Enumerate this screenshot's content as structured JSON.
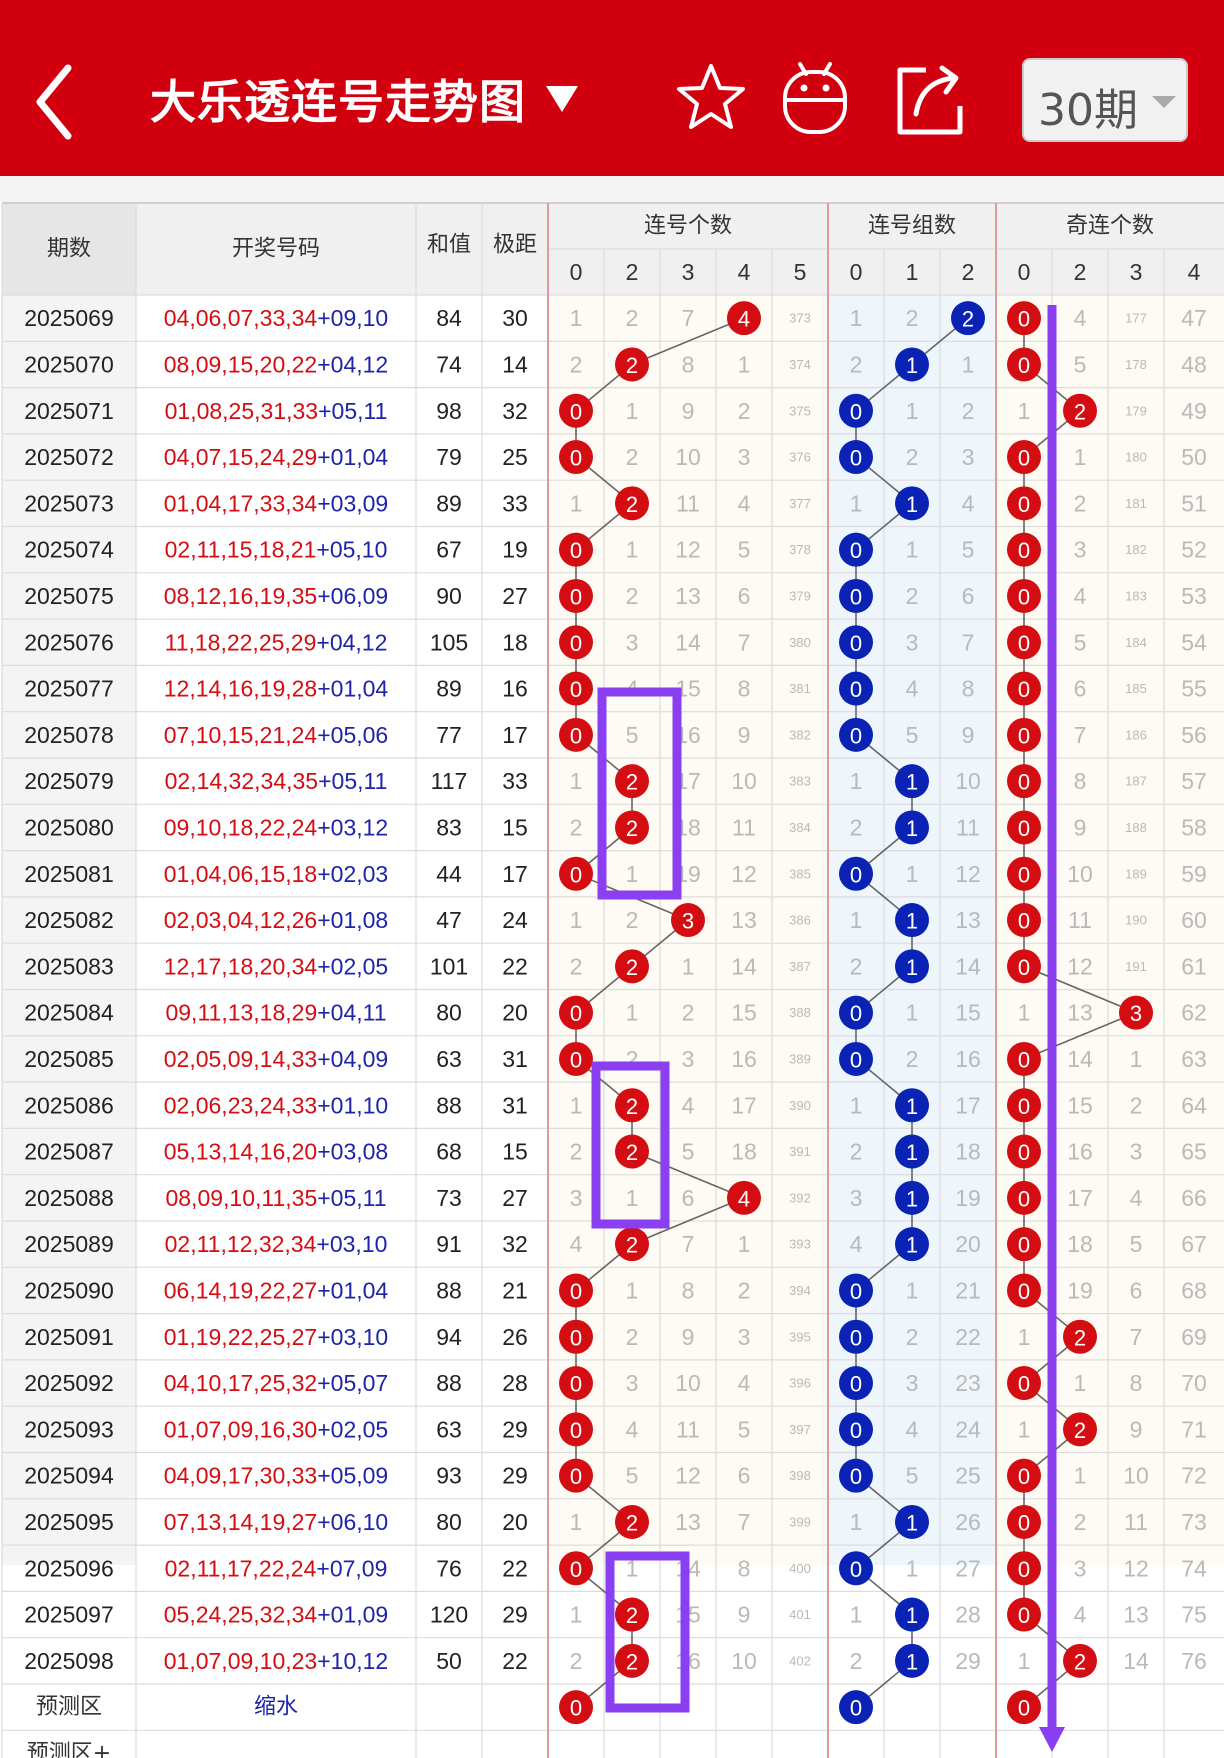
{
  "header": {
    "title": "大乐透连号走势图",
    "period_label": "30期",
    "icons": [
      "back-icon",
      "dropdown-icon",
      "star-icon",
      "android-icon",
      "share-icon",
      "caret-down-icon"
    ]
  },
  "table": {
    "col_headers": {
      "period": "期数",
      "numbers": "开奖号码",
      "sum": "和值",
      "span": "极距"
    },
    "groups": [
      {
        "label": "连号个数",
        "subs": [
          "0",
          "2",
          "3",
          "4",
          "5"
        ]
      },
      {
        "label": "连号组数",
        "subs": [
          "0",
          "1",
          "2"
        ]
      },
      {
        "label": "奇连个数",
        "subs": [
          "0",
          "2",
          "3",
          "4"
        ]
      }
    ],
    "rows": [
      {
        "p": "2025069",
        "f": "04,06,07,33,34",
        "b": "09,10",
        "s": "84",
        "j": "30",
        "g1": [
          "1",
          "2",
          "7",
          "4",
          "373"
        ],
        "h1": 3,
        "g2": [
          "1",
          "2",
          "2"
        ],
        "h2": 2,
        "g3": [
          "0",
          "4",
          "177",
          "47"
        ],
        "h3": 0
      },
      {
        "p": "2025070",
        "f": "08,09,15,20,22",
        "b": "04,12",
        "s": "74",
        "j": "14",
        "g1": [
          "2",
          "2",
          "8",
          "1",
          "374"
        ],
        "h1": 1,
        "g2": [
          "2",
          "1",
          "1"
        ],
        "h2": 1,
        "g3": [
          "0",
          "5",
          "178",
          "48"
        ],
        "h3": 0
      },
      {
        "p": "2025071",
        "f": "01,08,25,31,33",
        "b": "05,11",
        "s": "98",
        "j": "32",
        "g1": [
          "0",
          "1",
          "9",
          "2",
          "375"
        ],
        "h1": 0,
        "g2": [
          "0",
          "1",
          "2"
        ],
        "h2": 0,
        "g3": [
          "1",
          "2",
          "179",
          "49"
        ],
        "h3": 1
      },
      {
        "p": "2025072",
        "f": "04,07,15,24,29",
        "b": "01,04",
        "s": "79",
        "j": "25",
        "g1": [
          "0",
          "2",
          "10",
          "3",
          "376"
        ],
        "h1": 0,
        "g2": [
          "0",
          "2",
          "3"
        ],
        "h2": 0,
        "g3": [
          "0",
          "1",
          "180",
          "50"
        ],
        "h3": 0
      },
      {
        "p": "2025073",
        "f": "01,04,17,33,34",
        "b": "03,09",
        "s": "89",
        "j": "33",
        "g1": [
          "1",
          "2",
          "11",
          "4",
          "377"
        ],
        "h1": 1,
        "g2": [
          "1",
          "1",
          "4"
        ],
        "h2": 1,
        "g3": [
          "0",
          "2",
          "181",
          "51"
        ],
        "h3": 0
      },
      {
        "p": "2025074",
        "f": "02,11,15,18,21",
        "b": "05,10",
        "s": "67",
        "j": "19",
        "g1": [
          "0",
          "1",
          "12",
          "5",
          "378"
        ],
        "h1": 0,
        "g2": [
          "0",
          "1",
          "5"
        ],
        "h2": 0,
        "g3": [
          "0",
          "3",
          "182",
          "52"
        ],
        "h3": 0
      },
      {
        "p": "2025075",
        "f": "08,12,16,19,35",
        "b": "06,09",
        "s": "90",
        "j": "27",
        "g1": [
          "0",
          "2",
          "13",
          "6",
          "379"
        ],
        "h1": 0,
        "g2": [
          "0",
          "2",
          "6"
        ],
        "h2": 0,
        "g3": [
          "0",
          "4",
          "183",
          "53"
        ],
        "h3": 0
      },
      {
        "p": "2025076",
        "f": "11,18,22,25,29",
        "b": "04,12",
        "s": "105",
        "j": "18",
        "g1": [
          "0",
          "3",
          "14",
          "7",
          "380"
        ],
        "h1": 0,
        "g2": [
          "0",
          "3",
          "7"
        ],
        "h2": 0,
        "g3": [
          "0",
          "5",
          "184",
          "54"
        ],
        "h3": 0
      },
      {
        "p": "2025077",
        "f": "12,14,16,19,28",
        "b": "01,04",
        "s": "89",
        "j": "16",
        "g1": [
          "0",
          "4",
          "15",
          "8",
          "381"
        ],
        "h1": 0,
        "g2": [
          "0",
          "4",
          "8"
        ],
        "h2": 0,
        "g3": [
          "0",
          "6",
          "185",
          "55"
        ],
        "h3": 0
      },
      {
        "p": "2025078",
        "f": "07,10,15,21,24",
        "b": "05,06",
        "s": "77",
        "j": "17",
        "g1": [
          "0",
          "5",
          "16",
          "9",
          "382"
        ],
        "h1": 0,
        "g2": [
          "0",
          "5",
          "9"
        ],
        "h2": 0,
        "g3": [
          "0",
          "7",
          "186",
          "56"
        ],
        "h3": 0
      },
      {
        "p": "2025079",
        "f": "02,14,32,34,35",
        "b": "05,11",
        "s": "117",
        "j": "33",
        "g1": [
          "1",
          "2",
          "17",
          "10",
          "383"
        ],
        "h1": 1,
        "g2": [
          "1",
          "1",
          "10"
        ],
        "h2": 1,
        "g3": [
          "0",
          "8",
          "187",
          "57"
        ],
        "h3": 0
      },
      {
        "p": "2025080",
        "f": "09,10,18,22,24",
        "b": "03,12",
        "s": "83",
        "j": "15",
        "g1": [
          "2",
          "2",
          "18",
          "11",
          "384"
        ],
        "h1": 1,
        "g2": [
          "2",
          "1",
          "11"
        ],
        "h2": 1,
        "g3": [
          "0",
          "9",
          "188",
          "58"
        ],
        "h3": 0
      },
      {
        "p": "2025081",
        "f": "01,04,06,15,18",
        "b": "02,03",
        "s": "44",
        "j": "17",
        "g1": [
          "0",
          "1",
          "19",
          "12",
          "385"
        ],
        "h1": 0,
        "g2": [
          "0",
          "1",
          "12"
        ],
        "h2": 0,
        "g3": [
          "0",
          "10",
          "189",
          "59"
        ],
        "h3": 0
      },
      {
        "p": "2025082",
        "f": "02,03,04,12,26",
        "b": "01,08",
        "s": "47",
        "j": "24",
        "g1": [
          "1",
          "2",
          "3",
          "13",
          "386"
        ],
        "h1": 2,
        "g2": [
          "1",
          "1",
          "13"
        ],
        "h2": 1,
        "g3": [
          "0",
          "11",
          "190",
          "60"
        ],
        "h3": 0
      },
      {
        "p": "2025083",
        "f": "12,17,18,20,34",
        "b": "02,05",
        "s": "101",
        "j": "22",
        "g1": [
          "2",
          "2",
          "1",
          "14",
          "387"
        ],
        "h1": 1,
        "g2": [
          "2",
          "1",
          "14"
        ],
        "h2": 1,
        "g3": [
          "0",
          "12",
          "191",
          "61"
        ],
        "h3": 0
      },
      {
        "p": "2025084",
        "f": "09,11,13,18,29",
        "b": "04,11",
        "s": "80",
        "j": "20",
        "g1": [
          "0",
          "1",
          "2",
          "15",
          "388"
        ],
        "h1": 0,
        "g2": [
          "0",
          "1",
          "15"
        ],
        "h2": 0,
        "g3": [
          "1",
          "13",
          "3",
          "62"
        ],
        "h3": 2
      },
      {
        "p": "2025085",
        "f": "02,05,09,14,33",
        "b": "04,09",
        "s": "63",
        "j": "31",
        "g1": [
          "0",
          "2",
          "3",
          "16",
          "389"
        ],
        "h1": 0,
        "g2": [
          "0",
          "2",
          "16"
        ],
        "h2": 0,
        "g3": [
          "0",
          "14",
          "1",
          "63"
        ],
        "h3": 0
      },
      {
        "p": "2025086",
        "f": "02,06,23,24,33",
        "b": "01,10",
        "s": "88",
        "j": "31",
        "g1": [
          "1",
          "2",
          "4",
          "17",
          "390"
        ],
        "h1": 1,
        "g2": [
          "1",
          "1",
          "17"
        ],
        "h2": 1,
        "g3": [
          "0",
          "15",
          "2",
          "64"
        ],
        "h3": 0
      },
      {
        "p": "2025087",
        "f": "05,13,14,16,20",
        "b": "03,08",
        "s": "68",
        "j": "15",
        "g1": [
          "2",
          "2",
          "5",
          "18",
          "391"
        ],
        "h1": 1,
        "g2": [
          "2",
          "1",
          "18"
        ],
        "h2": 1,
        "g3": [
          "0",
          "16",
          "3",
          "65"
        ],
        "h3": 0
      },
      {
        "p": "2025088",
        "f": "08,09,10,11,35",
        "b": "05,11",
        "s": "73",
        "j": "27",
        "g1": [
          "3",
          "1",
          "6",
          "4",
          "392"
        ],
        "h1": 3,
        "g2": [
          "3",
          "1",
          "19"
        ],
        "h2": 1,
        "g3": [
          "0",
          "17",
          "4",
          "66"
        ],
        "h3": 0
      },
      {
        "p": "2025089",
        "f": "02,11,12,32,34",
        "b": "03,10",
        "s": "91",
        "j": "32",
        "g1": [
          "4",
          "2",
          "7",
          "1",
          "393"
        ],
        "h1": 1,
        "g2": [
          "4",
          "1",
          "20"
        ],
        "h2": 1,
        "g3": [
          "0",
          "18",
          "5",
          "67"
        ],
        "h3": 0
      },
      {
        "p": "2025090",
        "f": "06,14,19,22,27",
        "b": "01,04",
        "s": "88",
        "j": "21",
        "g1": [
          "0",
          "1",
          "8",
          "2",
          "394"
        ],
        "h1": 0,
        "g2": [
          "0",
          "1",
          "21"
        ],
        "h2": 0,
        "g3": [
          "0",
          "19",
          "6",
          "68"
        ],
        "h3": 0
      },
      {
        "p": "2025091",
        "f": "01,19,22,25,27",
        "b": "03,10",
        "s": "94",
        "j": "26",
        "g1": [
          "0",
          "2",
          "9",
          "3",
          "395"
        ],
        "h1": 0,
        "g2": [
          "0",
          "2",
          "22"
        ],
        "h2": 0,
        "g3": [
          "1",
          "2",
          "7",
          "69"
        ],
        "h3": 1
      },
      {
        "p": "2025092",
        "f": "04,10,17,25,32",
        "b": "05,07",
        "s": "88",
        "j": "28",
        "g1": [
          "0",
          "3",
          "10",
          "4",
          "396"
        ],
        "h1": 0,
        "g2": [
          "0",
          "3",
          "23"
        ],
        "h2": 0,
        "g3": [
          "0",
          "1",
          "8",
          "70"
        ],
        "h3": 0
      },
      {
        "p": "2025093",
        "f": "01,07,09,16,30",
        "b": "02,05",
        "s": "63",
        "j": "29",
        "g1": [
          "0",
          "4",
          "11",
          "5",
          "397"
        ],
        "h1": 0,
        "g2": [
          "0",
          "4",
          "24"
        ],
        "h2": 0,
        "g3": [
          "1",
          "2",
          "9",
          "71"
        ],
        "h3": 1
      },
      {
        "p": "2025094",
        "f": "04,09,17,30,33",
        "b": "05,09",
        "s": "93",
        "j": "29",
        "g1": [
          "0",
          "5",
          "12",
          "6",
          "398"
        ],
        "h1": 0,
        "g2": [
          "0",
          "5",
          "25"
        ],
        "h2": 0,
        "g3": [
          "0",
          "1",
          "10",
          "72"
        ],
        "h3": 0
      },
      {
        "p": "2025095",
        "f": "07,13,14,19,27",
        "b": "06,10",
        "s": "80",
        "j": "20",
        "g1": [
          "1",
          "2",
          "13",
          "7",
          "399"
        ],
        "h1": 1,
        "g2": [
          "1",
          "1",
          "26"
        ],
        "h2": 1,
        "g3": [
          "0",
          "2",
          "11",
          "73"
        ],
        "h3": 0
      },
      {
        "p": "2025096",
        "f": "02,11,17,22,24",
        "b": "07,09",
        "s": "76",
        "j": "22",
        "g1": [
          "0",
          "1",
          "14",
          "8",
          "400"
        ],
        "h1": 0,
        "g2": [
          "0",
          "1",
          "27"
        ],
        "h2": 0,
        "g3": [
          "0",
          "3",
          "12",
          "74"
        ],
        "h3": 0
      },
      {
        "p": "2025097",
        "f": "05,24,25,32,34",
        "b": "01,09",
        "s": "120",
        "j": "29",
        "g1": [
          "1",
          "2",
          "15",
          "9",
          "401"
        ],
        "h1": 1,
        "g2": [
          "1",
          "1",
          "28"
        ],
        "h2": 1,
        "g3": [
          "0",
          "4",
          "13",
          "75"
        ],
        "h3": 0
      },
      {
        "p": "2025098",
        "f": "01,07,09,10,23",
        "b": "10,12",
        "s": "50",
        "j": "22",
        "g1": [
          "2",
          "2",
          "16",
          "10",
          "402"
        ],
        "h1": 1,
        "g2": [
          "2",
          "1",
          "29"
        ],
        "h2": 1,
        "g3": [
          "1",
          "2",
          "14",
          "76"
        ],
        "h3": 1
      }
    ],
    "predict": {
      "label": "预测区",
      "note": "缩水",
      "g1_val": "0",
      "g2_val": "0",
      "g3_val": "0"
    },
    "predict_plus": {
      "label": "预测区+"
    }
  },
  "colors": {
    "header_red": "#d2000f",
    "ball_red": "#d40d12",
    "ball_blue": "#0a23b4",
    "annotation_purple": "#8a3ff0",
    "back_blue": "#1d24a8"
  }
}
